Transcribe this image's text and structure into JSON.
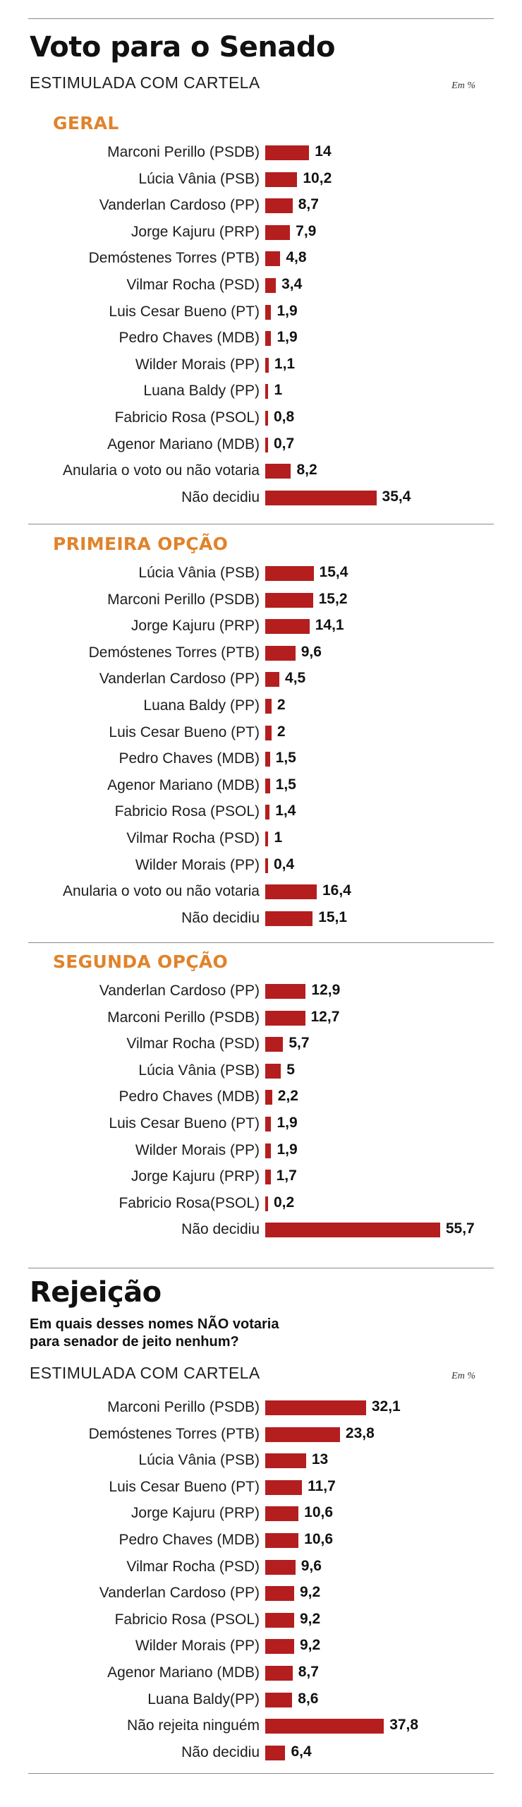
{
  "header": {
    "title": "Voto para o Senado",
    "subtitle": "ESTIMULADA COM CARTELA",
    "unit": "Em %"
  },
  "rejection": {
    "title": "Rejeição",
    "question_line1": "Em quais desses nomes NÃO votaria",
    "question_line2": "para senador de jeito nenhum?",
    "subtitle": "ESTIMULADA COM CARTELA",
    "unit": "Em %"
  },
  "chart_data": [
    {
      "type": "bar",
      "title": "GERAL",
      "categories": [
        "Marconi Perillo (PSDB)",
        "Lúcia Vânia (PSB)",
        "Vanderlan Cardoso (PP)",
        "Jorge Kajuru (PRP)",
        "Demóstenes Torres (PTB)",
        "Vilmar Rocha (PSD)",
        "Luis Cesar Bueno (PT)",
        "Pedro Chaves (MDB)",
        "Wilder Morais (PP)",
        "Luana Baldy (PP)",
        "Fabricio Rosa (PSOL)",
        "Agenor Mariano (MDB)",
        "Anularia o voto ou não votaria",
        "Não decidiu"
      ],
      "values": [
        14,
        10.2,
        8.7,
        7.9,
        4.8,
        3.4,
        1.9,
        1.9,
        1.1,
        1,
        0.8,
        0.7,
        8.2,
        35.4
      ],
      "value_labels": [
        "14",
        "10,2",
        "8,7",
        "7,9",
        "4,8",
        "3,4",
        "1,9",
        "1,9",
        "1,1",
        "1",
        "0,8",
        "0,7",
        "8,2",
        "35,4"
      ]
    },
    {
      "type": "bar",
      "title": "PRIMEIRA OPÇÃO",
      "categories": [
        "Lúcia Vânia (PSB)",
        "Marconi Perillo (PSDB)",
        "Jorge Kajuru (PRP)",
        "Demóstenes Torres (PTB)",
        "Vanderlan Cardoso (PP)",
        "Luana Baldy (PP)",
        "Luis Cesar Bueno (PT)",
        "Pedro Chaves (MDB)",
        "Agenor Mariano (MDB)",
        "Fabricio Rosa (PSOL)",
        "Vilmar Rocha (PSD)",
        "Wilder Morais (PP)",
        "Anularia o voto ou não votaria",
        "Não decidiu"
      ],
      "values": [
        15.4,
        15.2,
        14.1,
        9.6,
        4.5,
        2,
        2,
        1.5,
        1.5,
        1.4,
        1,
        0.4,
        16.4,
        15.1
      ],
      "value_labels": [
        "15,4",
        "15,2",
        "14,1",
        "9,6",
        "4,5",
        "2",
        "2",
        "1,5",
        "1,5",
        "1,4",
        "1",
        "0,4",
        "16,4",
        "15,1"
      ]
    },
    {
      "type": "bar",
      "title": "SEGUNDA OPÇÃO",
      "categories": [
        "Vanderlan Cardoso (PP)",
        "Marconi Perillo (PSDB)",
        "Vilmar Rocha (PSD)",
        "Lúcia Vânia (PSB)",
        "Pedro Chaves (MDB)",
        "Luis Cesar Bueno (PT)",
        "Wilder Morais (PP)",
        "Jorge Kajuru (PRP)",
        "Fabricio Rosa(PSOL)",
        "Não decidiu"
      ],
      "values": [
        12.9,
        12.7,
        5.7,
        5,
        2.2,
        1.9,
        1.9,
        1.7,
        0.2,
        55.7
      ],
      "value_labels": [
        "12,9",
        "12,7",
        "5,7",
        "5",
        "2,2",
        "1,9",
        "1,9",
        "1,7",
        "0,2",
        "55,7"
      ]
    },
    {
      "type": "bar",
      "title": "",
      "categories": [
        "Marconi Perillo (PSDB)",
        "Demóstenes Torres (PTB)",
        "Lúcia Vânia (PSB)",
        "Luis Cesar Bueno (PT)",
        "Jorge Kajuru (PRP)",
        "Pedro Chaves (MDB)",
        "Vilmar Rocha (PSD)",
        "Vanderlan Cardoso (PP)",
        "Fabricio Rosa (PSOL)",
        "Wilder Morais (PP)",
        "Agenor Mariano (MDB)",
        "Luana Baldy(PP)",
        "Não rejeita ninguém",
        "Não decidiu"
      ],
      "values": [
        32.1,
        23.8,
        13,
        11.7,
        10.6,
        10.6,
        9.6,
        9.2,
        9.2,
        9.2,
        8.7,
        8.6,
        37.8,
        6.4
      ],
      "value_labels": [
        "32,1",
        "23,8",
        "13",
        "11,7",
        "10,6",
        "10,6",
        "9,6",
        "9,2",
        "9,2",
        "9,2",
        "8,7",
        "8,6",
        "37,8",
        "6,4"
      ]
    }
  ],
  "colors": {
    "bar": "#b41e1e",
    "section_title": "#e0832b",
    "rule": "#8a8a8a"
  }
}
